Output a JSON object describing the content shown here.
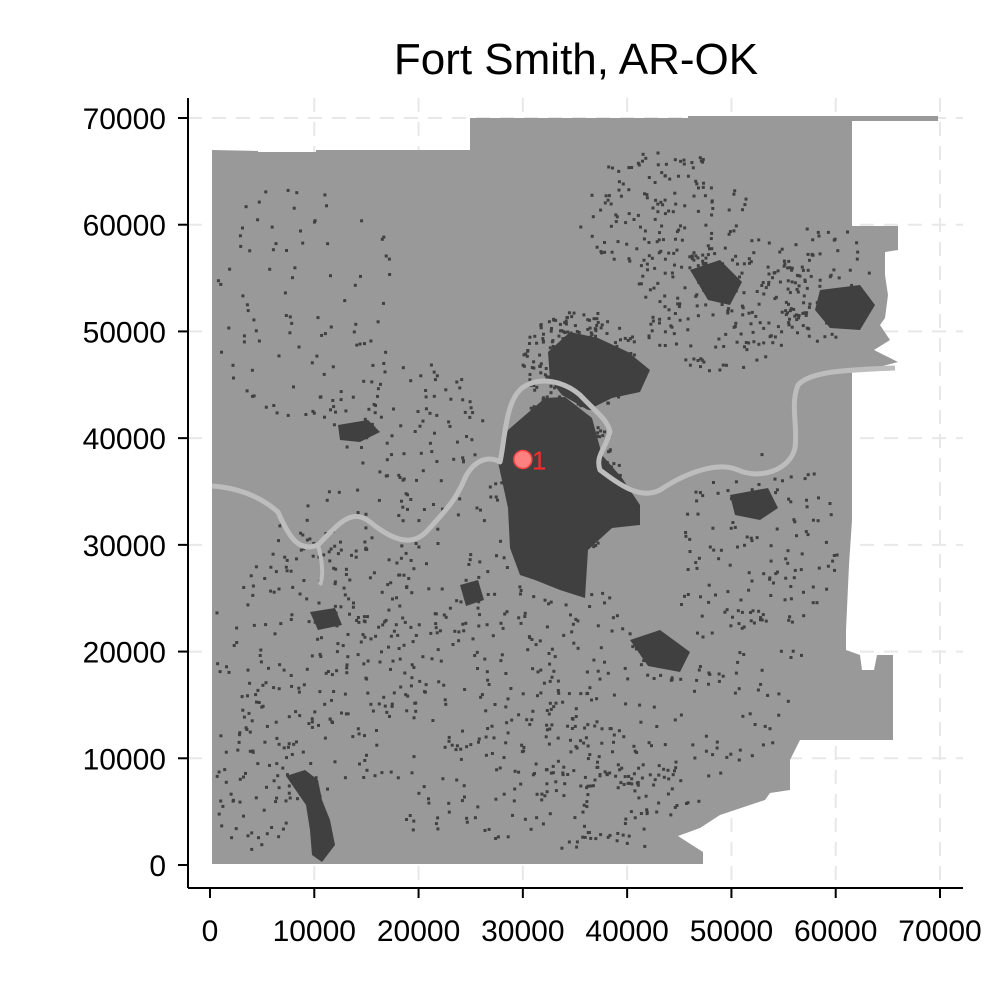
{
  "title": "Fort Smith, AR-OK",
  "chart_data": {
    "type": "map",
    "title": "Fort Smith, AR-OK",
    "xlim": [
      0,
      70000
    ],
    "ylim": [
      0,
      70000
    ],
    "x_ticks": [
      0,
      10000,
      20000,
      30000,
      40000,
      50000,
      60000,
      70000
    ],
    "y_ticks": [
      0,
      10000,
      20000,
      30000,
      40000,
      50000,
      60000,
      70000
    ],
    "grid": true,
    "colors": {
      "region": "#999999",
      "dense": "#404040",
      "river": "#bdbdbd",
      "marker": "#ff8080",
      "marker_label": "#ff2b2b",
      "grid": "#e8e8e8"
    },
    "markers": [
      {
        "label": "1",
        "x": 30000,
        "y": 38000
      }
    ]
  }
}
